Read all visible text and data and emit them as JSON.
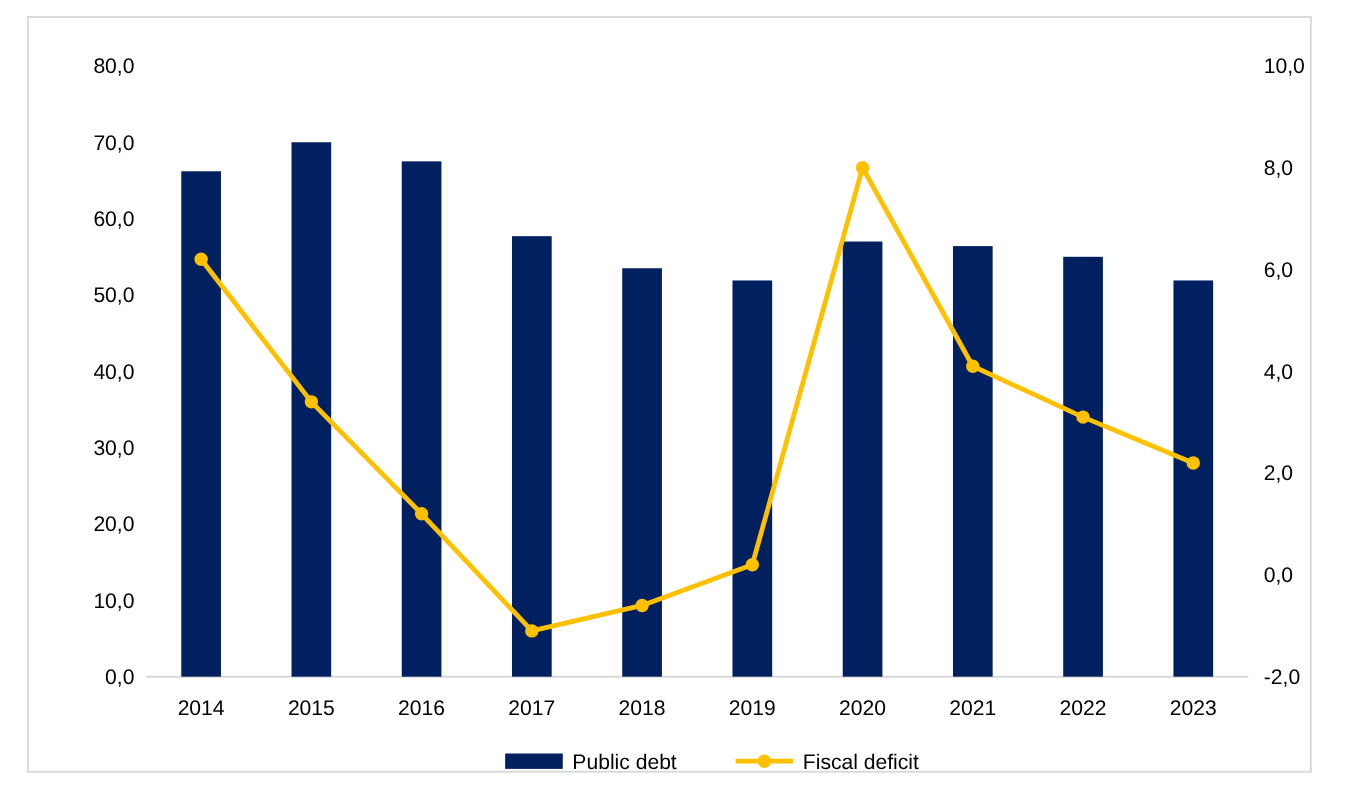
{
  "chart_data": {
    "type": "bar",
    "categories": [
      "2014",
      "2015",
      "2016",
      "2017",
      "2018",
      "2019",
      "2020",
      "2021",
      "2022",
      "2023"
    ],
    "series": [
      {
        "name": "Public debt",
        "color": "#002060",
        "values": [
          66.2,
          70.0,
          67.5,
          57.7,
          53.5,
          51.9,
          57.0,
          56.4,
          55.0,
          51.9
        ]
      },
      {
        "name": "Fiscal deficit",
        "type": "line",
        "axis": "y2",
        "color": "#ffc000",
        "marker": "circle",
        "values": [
          6.2,
          3.4,
          1.2,
          -1.1,
          -0.6,
          0.2,
          8.0,
          4.1,
          3.1,
          2.2
        ]
      }
    ],
    "ylim": [
      0,
      80
    ],
    "yticks": [
      {
        "value": 0,
        "label": "0,0"
      },
      {
        "value": 10,
        "label": "10,0"
      },
      {
        "value": 20,
        "label": "20,0"
      },
      {
        "value": 30,
        "label": "30,0"
      },
      {
        "value": 40,
        "label": "40,0"
      },
      {
        "value": 50,
        "label": "50,0"
      },
      {
        "value": 60,
        "label": "60,0"
      },
      {
        "value": 70,
        "label": "70,0"
      },
      {
        "value": 80,
        "label": "80,0"
      }
    ],
    "y2lim": [
      -2,
      10
    ],
    "y2ticks": [
      {
        "value": -2,
        "label": "-2,0"
      },
      {
        "value": 0,
        "label": "0,0"
      },
      {
        "value": 2,
        "label": "2,0"
      },
      {
        "value": 4,
        "label": "4,0"
      },
      {
        "value": 6,
        "label": "6,0"
      },
      {
        "value": 8,
        "label": "8,0"
      },
      {
        "value": 10,
        "label": "10,0"
      }
    ],
    "legend": "bottom"
  }
}
